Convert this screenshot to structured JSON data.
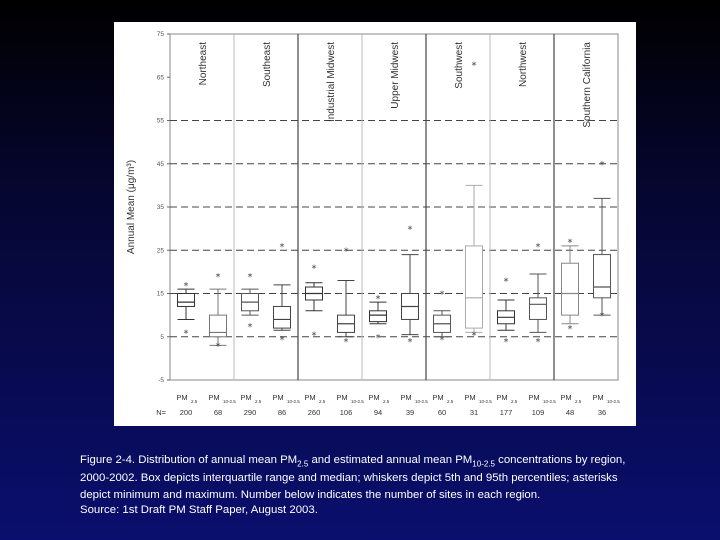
{
  "chart_data": {
    "type": "box",
    "ylabel": "Annual Mean (μg/m³)",
    "ylim": [
      -5,
      75
    ],
    "yticks": [
      "75",
      "65",
      "55",
      "45",
      "35",
      "25",
      "15",
      "5",
      "-5"
    ],
    "dashed_lines": [
      55,
      45,
      35,
      25,
      15,
      5
    ],
    "n_label": "N=",
    "regions": [
      {
        "name": "Northeast",
        "n_cats": 2
      },
      {
        "name": "Southeast",
        "n_cats": 2
      },
      {
        "name": "Industrial Midwest",
        "n_cats": 2
      },
      {
        "name": "Upper Midwest",
        "n_cats": 2
      },
      {
        "name": "Southwest",
        "n_cats": 2
      },
      {
        "name": "Northwest",
        "n_cats": 2
      },
      {
        "name": "Southern California",
        "n_cats": 2
      }
    ],
    "categories": [
      {
        "main": "PM",
        "sub": "2.5",
        "n": "200"
      },
      {
        "main": "PM",
        "sub": "10-2.5",
        "n": "68"
      },
      {
        "main": "PM",
        "sub": "2.5",
        "n": "290"
      },
      {
        "main": "PM",
        "sub": "10-2.5",
        "n": "86"
      },
      {
        "main": "PM",
        "sub": "2.5",
        "n": "260"
      },
      {
        "main": "PM",
        "sub": "10-2.5",
        "n": "106"
      },
      {
        "main": "PM",
        "sub": "2.5",
        "n": "94"
      },
      {
        "main": "PM",
        "sub": "10-2.5",
        "n": "39"
      },
      {
        "main": "PM",
        "sub": "2.5",
        "n": "60"
      },
      {
        "main": "PM",
        "sub": "10-2.5",
        "n": "31"
      },
      {
        "main": "PM",
        "sub": "2.5",
        "n": "177"
      },
      {
        "main": "PM",
        "sub": "10-2.5",
        "n": "109"
      },
      {
        "main": "PM",
        "sub": "2.5",
        "n": "48"
      },
      {
        "main": "PM",
        "sub": "10-2.5",
        "n": "36"
      }
    ],
    "boxes": [
      {
        "min": 6,
        "p5": 9,
        "q1": 12,
        "median": 13,
        "q3": 15,
        "p95": 16,
        "max": 17,
        "color": "#333333"
      },
      {
        "min": 3,
        "p5": 3,
        "q1": 5,
        "median": 6,
        "q3": 10,
        "p95": 16,
        "max": 19,
        "color": "#777777"
      },
      {
        "min": 7.5,
        "p5": 10,
        "q1": 11,
        "median": 13,
        "q3": 15,
        "p95": 16,
        "max": 19,
        "color": "#555555"
      },
      {
        "min": 4.5,
        "p5": 6.5,
        "q1": 7,
        "median": 9,
        "q3": 12,
        "p95": 17,
        "max": 26,
        "color": "#444444"
      },
      {
        "min": 5.5,
        "p5": 11,
        "q1": 13.5,
        "median": 15,
        "q3": 16.5,
        "p95": 17.5,
        "max": 21,
        "color": "#333333"
      },
      {
        "min": 4,
        "p5": 5,
        "q1": 6,
        "median": 8,
        "q3": 10,
        "p95": 18,
        "max": 25,
        "color": "#444444"
      },
      {
        "min": 5,
        "p5": 8,
        "q1": 8.5,
        "median": 10,
        "q3": 11,
        "p95": 13,
        "max": 14,
        "color": "#333333"
      },
      {
        "min": 4,
        "p5": 5.5,
        "q1": 9,
        "median": 12,
        "q3": 15,
        "p95": 24,
        "max": 30,
        "color": "#444444"
      },
      {
        "min": 4.5,
        "p5": 5,
        "q1": 6,
        "median": 8,
        "q3": 10,
        "p95": 11,
        "max": 15,
        "color": "#555555"
      },
      {
        "min": 5.5,
        "p5": 6,
        "q1": 7,
        "median": 14,
        "q3": 26,
        "p95": 40,
        "max": 68,
        "color": "#aaaaaa"
      },
      {
        "min": 4,
        "p5": 6.5,
        "q1": 8,
        "median": 9.5,
        "q3": 11,
        "p95": 13.5,
        "max": 18,
        "color": "#333333"
      },
      {
        "min": 4,
        "p5": 6,
        "q1": 9,
        "median": 12.5,
        "q3": 14,
        "p95": 19.5,
        "max": 26,
        "color": "#555555"
      },
      {
        "min": 7,
        "p5": 8,
        "q1": 10,
        "median": 15,
        "q3": 22,
        "p95": 26,
        "max": 27,
        "color": "#888888"
      },
      {
        "min": 10,
        "p5": 10,
        "q1": 14,
        "median": 16.5,
        "q3": 24,
        "p95": 37,
        "max": 45,
        "color": "#555555"
      }
    ]
  },
  "caption": {
    "line1_pre": "Figure 2-4.  Distribution of annual mean PM",
    "line1_sub1": "2.5",
    "line1_mid": " and estimated annual mean PM",
    "line1_sub2": "10-2.5",
    "line1_post": " concentrations by region,",
    "line2": "2000-2002.  Box depicts interquartile range and median; whiskers depict 5th and 95th percentiles; asterisks",
    "line3": "depict minimum and maximum.  Number below indicates the number of sites in each region."
  },
  "source": "Source:  1st Draft PM Staff Paper, August 2003."
}
